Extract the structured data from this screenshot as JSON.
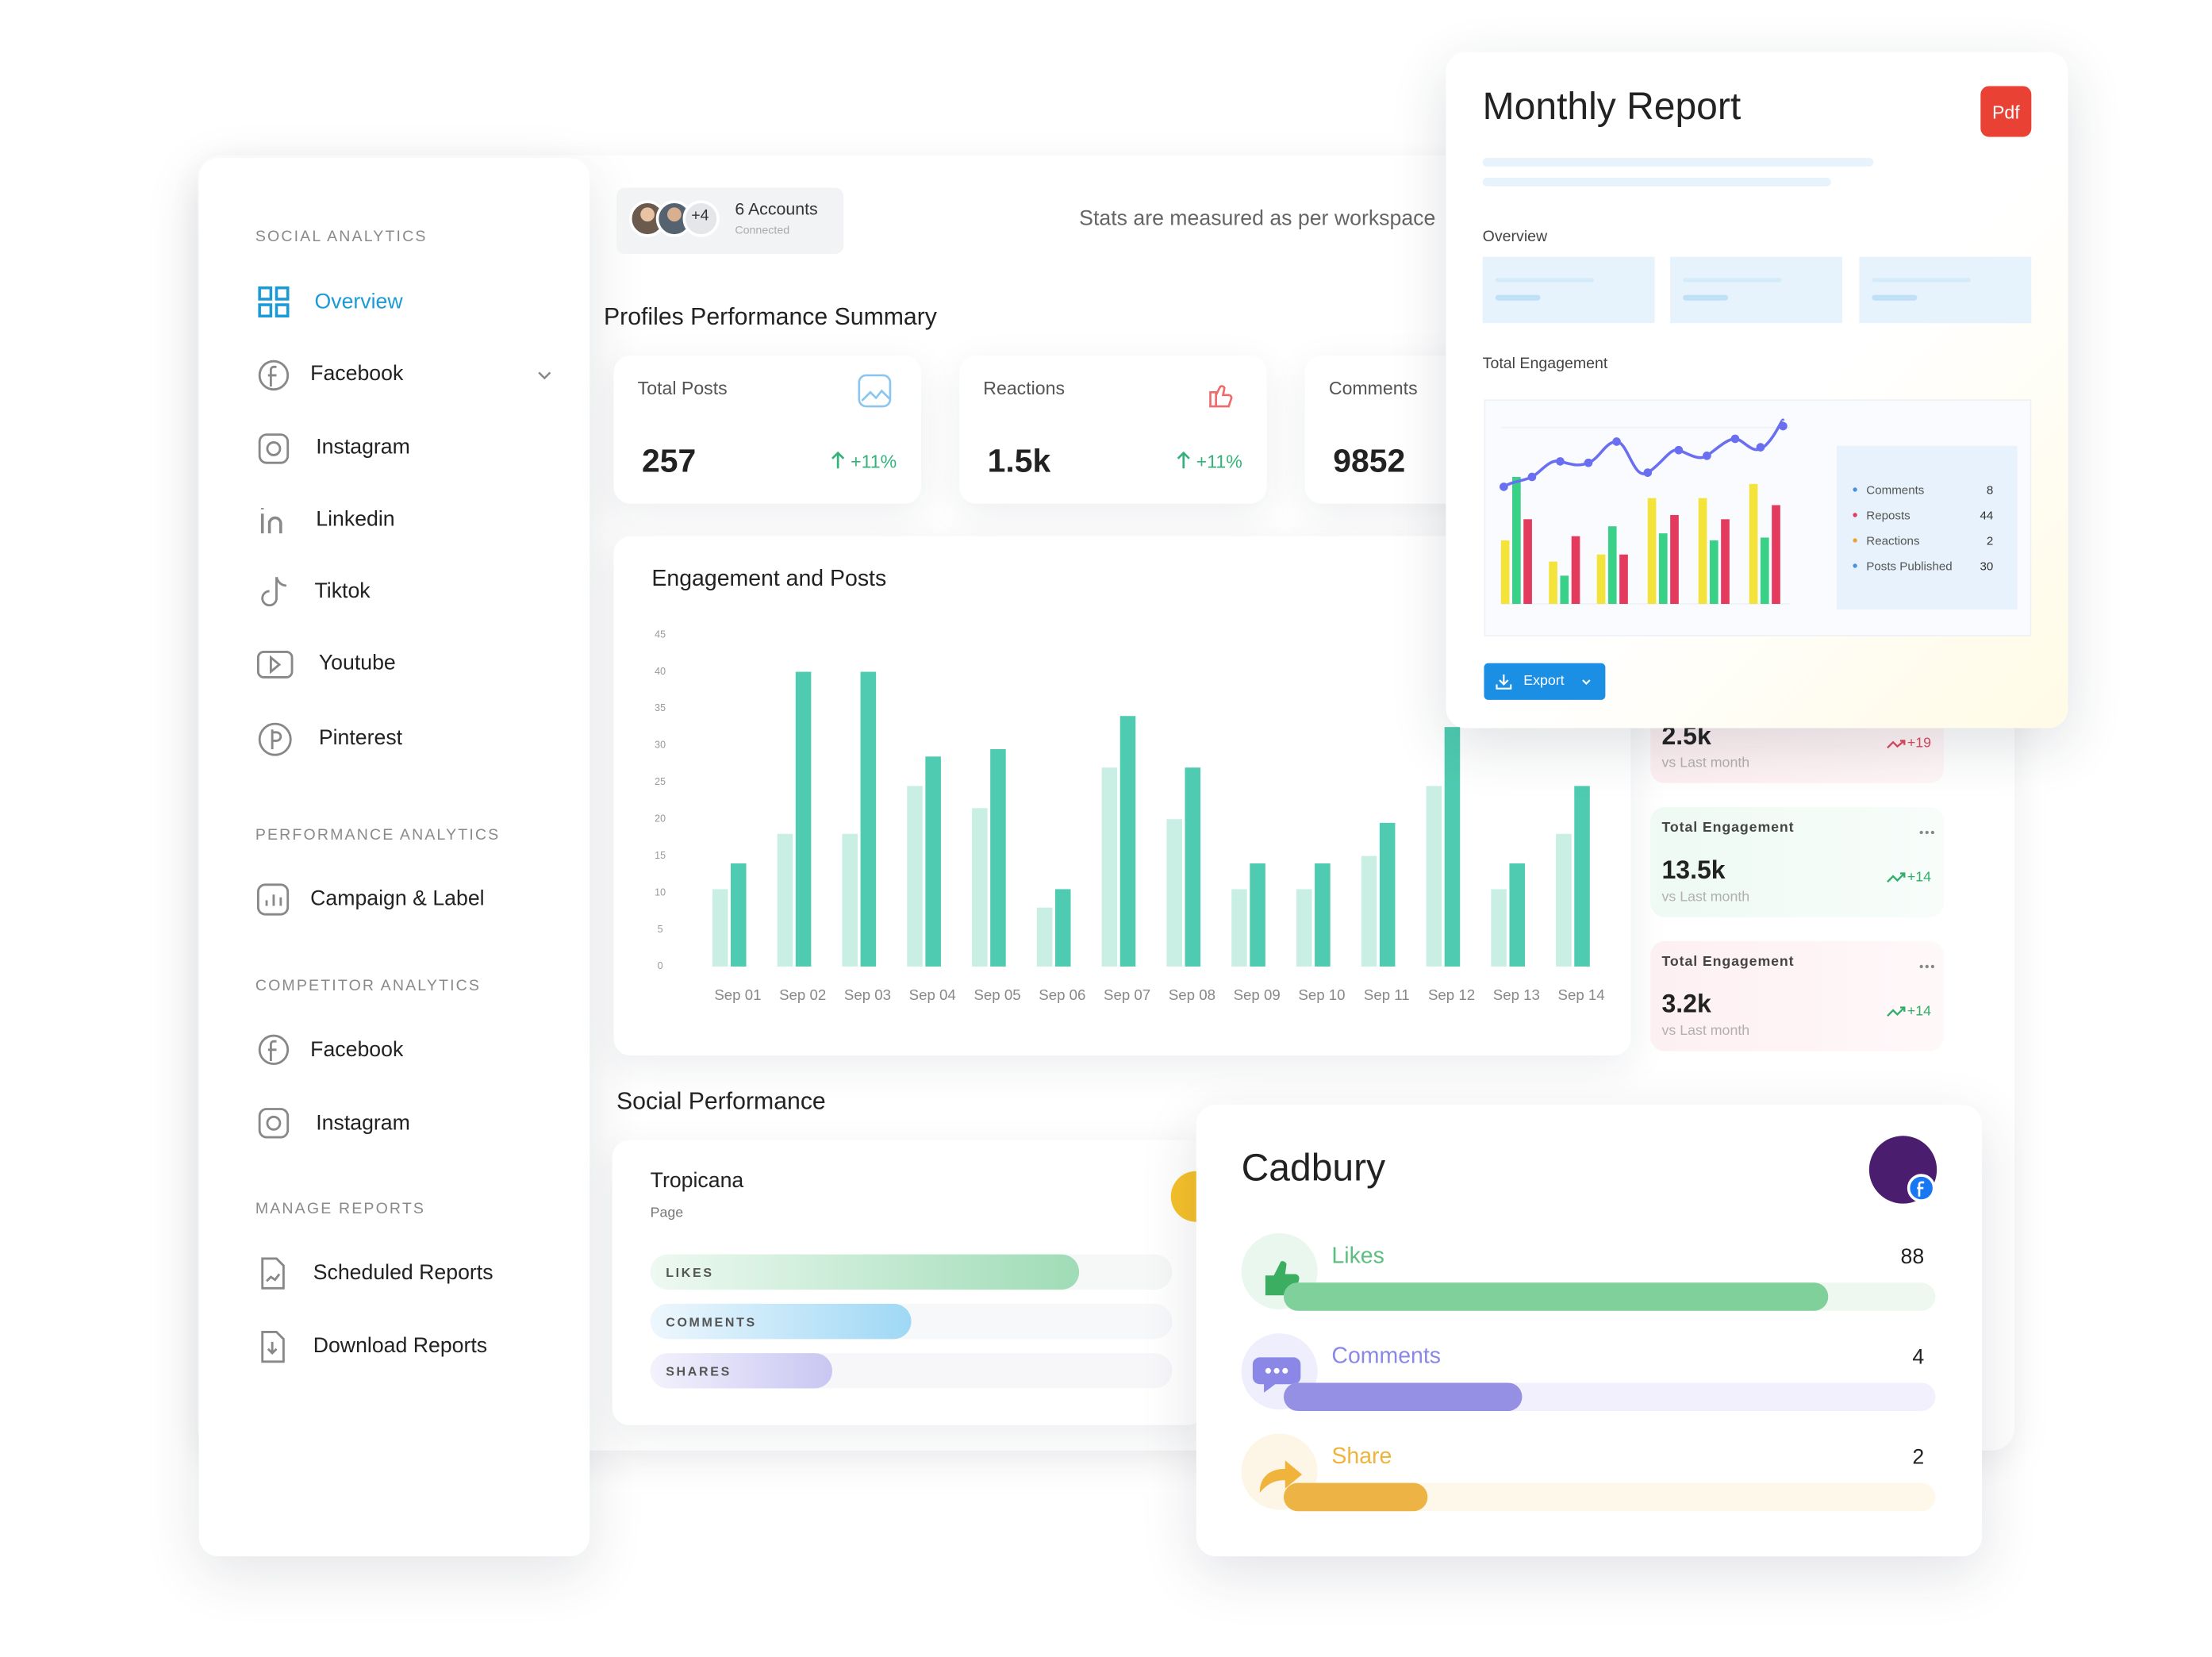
{
  "sidebar": {
    "sections": [
      {
        "title": "SOCIAL ANALYTICS",
        "items": [
          "Overview",
          "Facebook",
          "Instagram",
          "Linkedin",
          "Tiktok",
          "Youtube",
          "Pinterest"
        ]
      },
      {
        "title": "PERFORMANCE ANALYTICS",
        "items": [
          "Campaign & Label"
        ]
      },
      {
        "title": "COMPETITOR ANALYTICS",
        "items": [
          "Facebook",
          "Instagram"
        ]
      },
      {
        "title": "MANAGE REPORTS",
        "items": [
          "Scheduled Reports",
          "Download Reports"
        ]
      }
    ]
  },
  "header": {
    "avatar_more": "+4",
    "accounts": "6 Accounts",
    "accounts_status": "Connected",
    "note": "Stats are measured as per workspace"
  },
  "summary": {
    "title": "Profiles Performance Summary",
    "cards": [
      {
        "label": "Total Posts",
        "value": "257",
        "change": "+11%"
      },
      {
        "label": "Reactions",
        "value": "1.5k",
        "change": "+11%"
      },
      {
        "label": "Comments",
        "value": "9852"
      }
    ]
  },
  "chart_data": {
    "type": "bar",
    "title": "Engagement and Posts",
    "categories": [
      "Sep 01",
      "Sep 02",
      "Sep 03",
      "Sep 04",
      "Sep 05",
      "Sep 06",
      "Sep 07",
      "Sep 08",
      "Sep 09",
      "Sep 10",
      "Sep 11",
      "Sep 12",
      "Sep 13",
      "Sep 14"
    ],
    "series": [
      {
        "color": "#c9efe5",
        "values": [
          10.5,
          18,
          18,
          24.5,
          21.5,
          8,
          27,
          20,
          10.5,
          10.5,
          15,
          24.5,
          10.5,
          18
        ]
      },
      {
        "color": "#4ecbb0",
        "values": [
          14,
          40,
          40,
          28.5,
          29.5,
          10.5,
          34,
          27,
          14,
          14,
          19.5,
          32.5,
          14,
          24.5
        ]
      }
    ],
    "ylim": [
      0,
      45
    ],
    "yticks": [
      0,
      5,
      10,
      15,
      20,
      25,
      30,
      35,
      40,
      45
    ],
    "grid": false
  },
  "side_stats": [
    {
      "value": "2.5k",
      "change": "+19",
      "note": "vs Last month"
    },
    {
      "label": "Total Engagement",
      "value": "13.5k",
      "change": "+14",
      "note": "vs Last month"
    },
    {
      "label": "Total Engagement",
      "value": "3.2k",
      "change": "+14",
      "note": "vs Last month"
    }
  ],
  "social": {
    "title": "Social Performance",
    "page": {
      "name": "Tropicana",
      "kind": "Page",
      "metrics": [
        "LIKES",
        "COMMENTS",
        "SHARES"
      ]
    }
  },
  "cadbury": {
    "name": "Cadbury",
    "metrics": [
      {
        "label": "Likes",
        "value": 88
      },
      {
        "label": "Comments",
        "value": 4
      },
      {
        "label": "Share",
        "value": 2
      }
    ]
  },
  "report": {
    "title": "Monthly Report",
    "badge": "Pdf",
    "overview": "Overview",
    "engagement": "Total Engagement",
    "legend": [
      {
        "label": "Comments",
        "value": 8
      },
      {
        "label": "Reposts",
        "value": 44
      },
      {
        "label": "Reactions",
        "value": 2
      },
      {
        "label": "Posts Published",
        "value": 30
      }
    ],
    "button": "Export"
  }
}
